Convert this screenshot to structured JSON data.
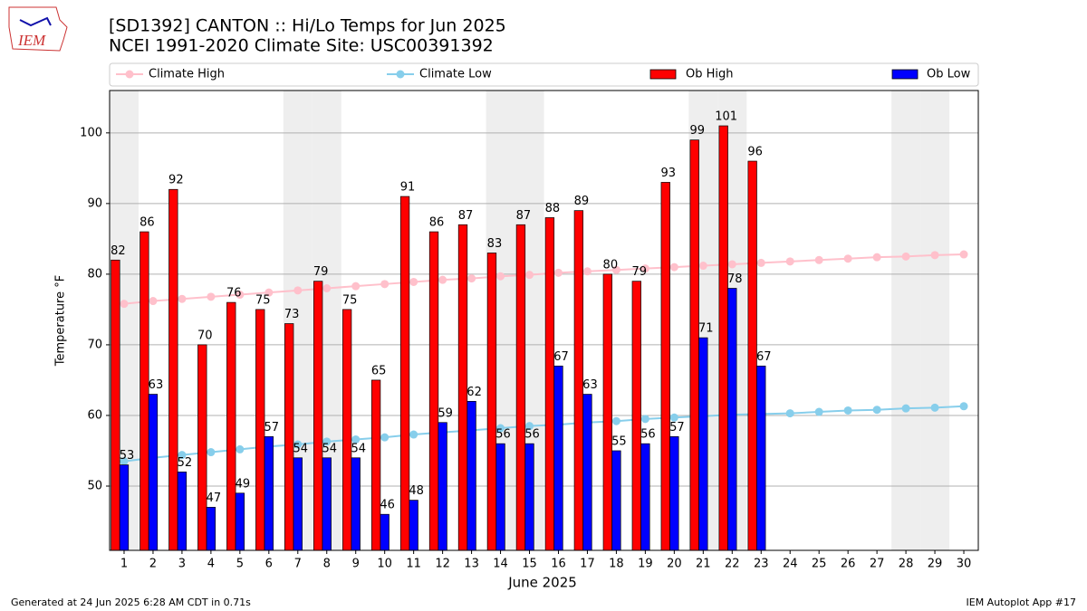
{
  "chart_data": {
    "type": "bar",
    "logo_text": "IEM",
    "title": "[SD1392] CANTON :: Hi/Lo Temps for Jun 2025",
    "subtitle": "NCEI 1991-2020 Climate Site: USC00391392",
    "xlabel": "June 2025",
    "ylabel": "Temperature °F",
    "footer_left": "Generated at 24 Jun 2025 6:28 AM CDT in 0.71s",
    "footer_right": "IEM Autoplot App #17",
    "x": [
      1,
      2,
      3,
      4,
      5,
      6,
      7,
      8,
      9,
      10,
      11,
      12,
      13,
      14,
      15,
      16,
      17,
      18,
      19,
      20,
      21,
      22,
      23,
      24,
      25,
      26,
      27,
      28,
      29,
      30
    ],
    "xlim": [
      0.5,
      30.5
    ],
    "xticks": [
      1,
      2,
      3,
      4,
      5,
      6,
      7,
      8,
      9,
      10,
      11,
      12,
      13,
      14,
      15,
      16,
      17,
      18,
      19,
      20,
      21,
      22,
      23,
      24,
      25,
      26,
      27,
      28,
      29,
      30
    ],
    "ylim": [
      40.9,
      106
    ],
    "yticks": [
      50,
      60,
      70,
      80,
      90,
      100
    ],
    "grid": true,
    "shaded_days": [
      1,
      7,
      8,
      14,
      15,
      21,
      22,
      28,
      29
    ],
    "series": [
      {
        "name": "Climate High",
        "kind": "line",
        "color": "#ffc0cb",
        "values": [
          75.8,
          76.2,
          76.5,
          76.8,
          77.1,
          77.4,
          77.7,
          78.0,
          78.3,
          78.6,
          78.9,
          79.2,
          79.4,
          79.7,
          79.9,
          80.2,
          80.4,
          80.6,
          80.8,
          81.0,
          81.2,
          81.4,
          81.6,
          81.8,
          82.0,
          82.2,
          82.4,
          82.5,
          82.7,
          82.8
        ]
      },
      {
        "name": "Climate Low",
        "kind": "line",
        "color": "#87ceeb",
        "values": [
          53.5,
          54.0,
          54.4,
          54.8,
          55.2,
          55.6,
          55.9,
          56.3,
          56.6,
          56.9,
          57.3,
          57.6,
          57.9,
          58.2,
          58.5,
          58.7,
          59.0,
          59.2,
          59.5,
          59.7,
          59.9,
          60.1,
          60.2,
          60.3,
          60.5,
          60.7,
          60.8,
          61.0,
          61.1,
          61.3
        ]
      },
      {
        "name": "Ob High",
        "kind": "bar",
        "color": "#ff0000",
        "values": [
          82,
          86,
          92,
          70,
          76,
          75,
          73,
          79,
          75,
          65,
          91,
          86,
          87,
          83,
          87,
          88,
          89,
          80,
          79,
          93,
          99,
          101,
          96,
          null,
          null,
          null,
          null,
          null,
          null,
          null
        ]
      },
      {
        "name": "Ob Low",
        "kind": "bar",
        "color": "#0000ff",
        "values": [
          53,
          63,
          52,
          47,
          49,
          57,
          54,
          54,
          54,
          46,
          48,
          59,
          62,
          56,
          56,
          67,
          63,
          55,
          56,
          57,
          71,
          78,
          67,
          null,
          null,
          null,
          null,
          null,
          null,
          null
        ]
      }
    ]
  }
}
